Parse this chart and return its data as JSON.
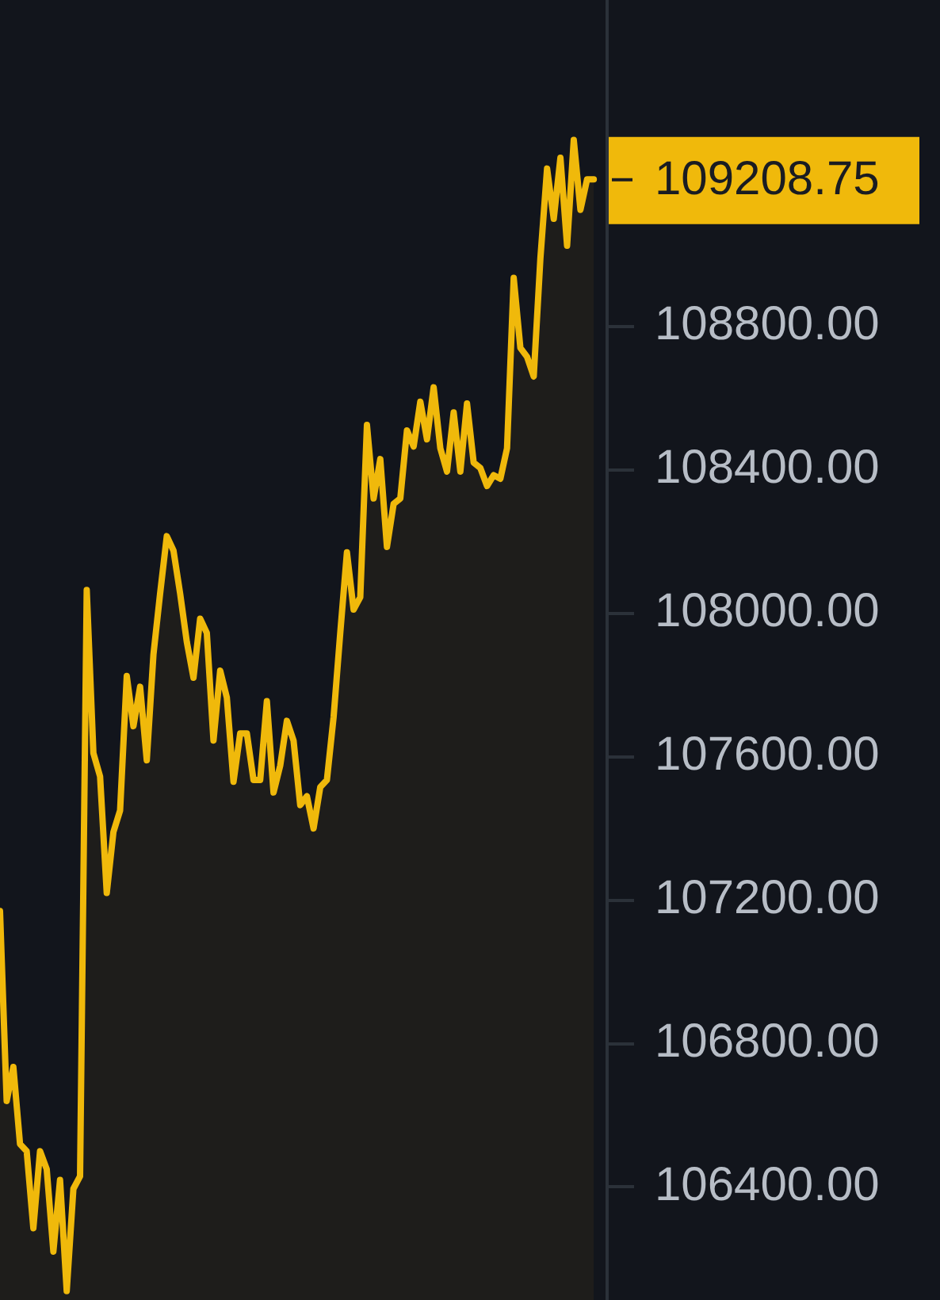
{
  "chart_data": {
    "type": "area",
    "categories": [
      null,
      null,
      null,
      null,
      null,
      null,
      null,
      null,
      null,
      null,
      null,
      null,
      null,
      null,
      null,
      null,
      null,
      null,
      null,
      null,
      null,
      null,
      null,
      null,
      null,
      null,
      null,
      null,
      null,
      null,
      null,
      null,
      null,
      null,
      null,
      null,
      null,
      null,
      null,
      null,
      null,
      null,
      null,
      null,
      null,
      null,
      null,
      null,
      null,
      null,
      null,
      null,
      null,
      null,
      null,
      null,
      null,
      null,
      null,
      null,
      null,
      null,
      null,
      null,
      null,
      null,
      null,
      null,
      null,
      null,
      null,
      null,
      null,
      null,
      null,
      null,
      null,
      null,
      null,
      null,
      null,
      null,
      null,
      null,
      null,
      null,
      null,
      null,
      null,
      null
    ],
    "values": [
      107170,
      106640,
      106735,
      106520,
      106500,
      106285,
      106500,
      106450,
      106220,
      106420,
      106110,
      106395,
      106430,
      108065,
      107610,
      107545,
      107220,
      107390,
      107450,
      107825,
      107685,
      107795,
      107590,
      107885,
      108055,
      108215,
      108175,
      108055,
      107920,
      107820,
      107985,
      107945,
      107645,
      107840,
      107765,
      107530,
      107665,
      107665,
      107535,
      107535,
      107755,
      107500,
      107575,
      107700,
      107645,
      107465,
      107490,
      107400,
      107515,
      107535,
      107710,
      107945,
      108170,
      108010,
      108045,
      108525,
      108320,
      108430,
      108185,
      108305,
      108320,
      108510,
      108465,
      108590,
      108485,
      108630,
      108460,
      108395,
      108560,
      108395,
      108585,
      108420,
      108405,
      108355,
      108385,
      108375,
      108460,
      108935,
      108740,
      108715,
      108660,
      108990,
      109240,
      109100,
      109270,
      109025,
      109320,
      109125,
      109210,
      109210
    ],
    "color": "#f0b90b",
    "ylim": [
      106085,
      109710
    ],
    "yticks": [
      {
        "value": 106400,
        "label": "106400.00"
      },
      {
        "value": 106800,
        "label": "106800.00"
      },
      {
        "value": 107200,
        "label": "107200.00"
      },
      {
        "value": 107600,
        "label": "107600.00"
      },
      {
        "value": 108000,
        "label": "108000.00"
      },
      {
        "value": 108400,
        "label": "108400.00"
      },
      {
        "value": 108800,
        "label": "108800.00"
      }
    ],
    "ref_lines": [
      {
        "axis": "y",
        "value": 109208.75,
        "label": "109208.75"
      }
    ]
  }
}
